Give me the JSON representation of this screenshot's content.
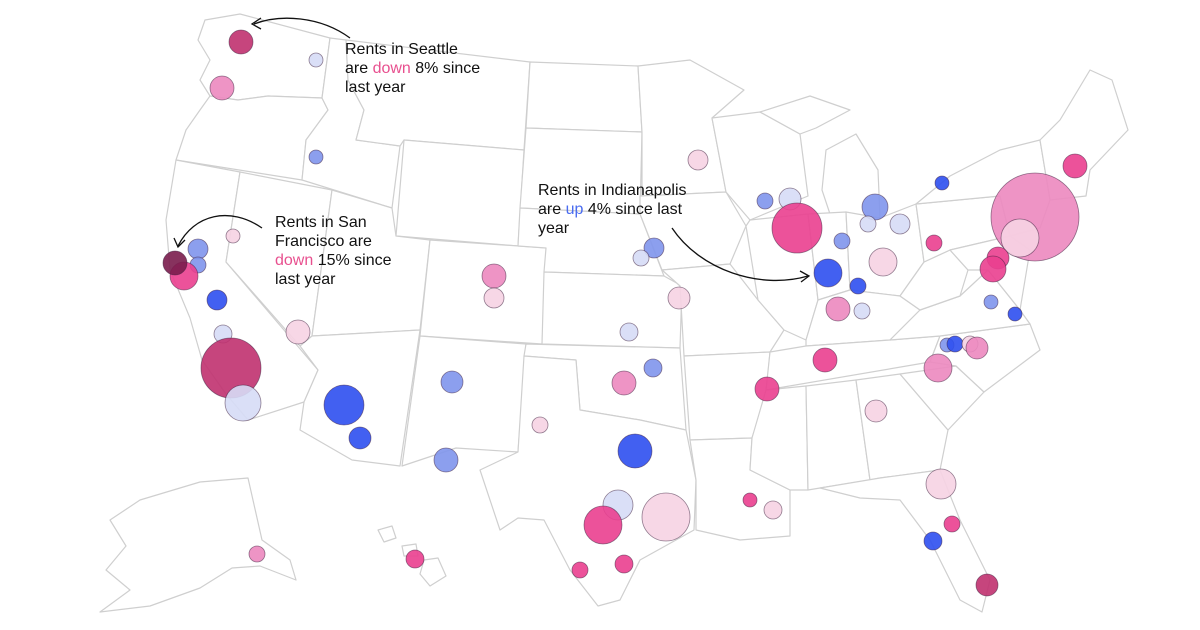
{
  "map": {
    "colors": {
      "down_strong": "#c0316f",
      "down_hot": "#ea3f8f",
      "down_medium": "#ec88bf",
      "down_light": "#f6d3e3",
      "up_light": "#d6dcf6",
      "up_medium": "#8095ec",
      "up_strong": "#2d4ff0",
      "seattle_dark": "#7a1c4c"
    },
    "annotations": {
      "seattle": {
        "line1": "Rents in Seattle",
        "pre": "are ",
        "highlight": "down",
        "post": " 8% since",
        "line3": "last year"
      },
      "sf": {
        "line1": "Rents in San",
        "line2": "Francisco are",
        "highlight": "down",
        "post": " 15% since",
        "line4": "last year"
      },
      "indy": {
        "line1": "Rents in Indianapolis",
        "pre": "are ",
        "highlight": "up",
        "post": " 4% since last",
        "line3": "year"
      }
    }
  }
}
